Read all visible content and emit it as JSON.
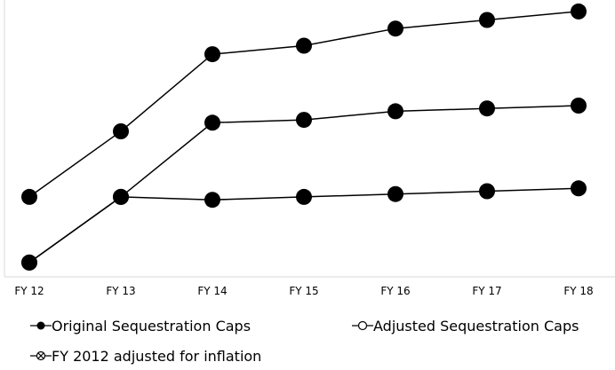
{
  "chart_data": {
    "type": "line",
    "categories": [
      "FY 12",
      "FY 13",
      "FY 14",
      "FY 15",
      "FY 16",
      "FY 17",
      "FY 18"
    ],
    "series": [
      {
        "name": "Original Sequestration Caps",
        "values": [
          1043,
          1066,
          1093,
          1096,
          1102,
          1105,
          1108
        ],
        "marker": "filled"
      },
      {
        "name": "Adjusted Sequestration Caps",
        "values": [
          1020,
          1043,
          1069,
          1070,
          1073,
          1074,
          1075
        ],
        "marker": "open"
      },
      {
        "name": "FY 2012 adjusted for inflation",
        "values": [
          1020,
          1043,
          1042,
          1043,
          1044,
          1045,
          1046
        ],
        "marker": "crossed"
      }
    ],
    "ylim": [
      1015,
      1112
    ],
    "grid": false,
    "legend_position": "bottom",
    "colors": {
      "line": "#000000",
      "marker": "#000000",
      "axis": "#d9d9d9",
      "text": "#000000"
    }
  }
}
